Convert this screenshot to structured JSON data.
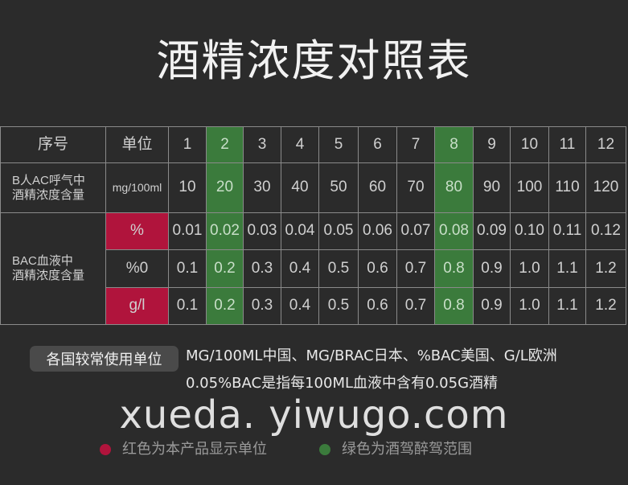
{
  "title": "酒精浓度对照表",
  "colors": {
    "green": "#3b7b3c",
    "red": "#b0143c",
    "background": "#2b2b2b"
  },
  "table": {
    "header": {
      "index_label": "序号",
      "unit_label": "单位",
      "columns": [
        "1",
        "2",
        "3",
        "4",
        "5",
        "6",
        "7",
        "8",
        "9",
        "10",
        "11",
        "12"
      ]
    },
    "breath_group_label": "B人AC呼气中\n酒精浓度含量",
    "blood_group_label": "BAC血液中\n酒精浓度含量",
    "rows": [
      {
        "unit": "mg/100ml",
        "unit_highlight": "none",
        "values": [
          "10",
          "20",
          "30",
          "40",
          "50",
          "60",
          "70",
          "80",
          "90",
          "100",
          "110",
          "120"
        ]
      },
      {
        "unit": "%",
        "unit_highlight": "red",
        "values": [
          "0.01",
          "0.02",
          "0.03",
          "0.04",
          "0.05",
          "0.06",
          "0.07",
          "0.08",
          "0.09",
          "0.10",
          "0.11",
          "0.12"
        ]
      },
      {
        "unit": "%0",
        "unit_highlight": "none",
        "values": [
          "0.1",
          "0.2",
          "0.3",
          "0.4",
          "0.5",
          "0.6",
          "0.7",
          "0.8",
          "0.9",
          "1.0",
          "1.1",
          "1.2"
        ]
      },
      {
        "unit": "g/l",
        "unit_highlight": "red",
        "values": [
          "0.1",
          "0.2",
          "0.3",
          "0.4",
          "0.5",
          "0.6",
          "0.7",
          "0.8",
          "0.9",
          "1.0",
          "1.1",
          "1.2"
        ]
      }
    ],
    "green_columns": [
      "2",
      "8"
    ]
  },
  "watermark": "xueda. yiwugo.com",
  "notes": {
    "tag": "各国较常使用单位",
    "line1": "MG/100ML中国、MG/BRAC日本、%BAC美国、G/L欧洲",
    "line2": "0.05%BAC是指每100ML血液中含有0.05G酒精"
  },
  "legend": {
    "red": "红色为本产品显示单位",
    "green": "绿色为酒驾醉驾范围"
  }
}
